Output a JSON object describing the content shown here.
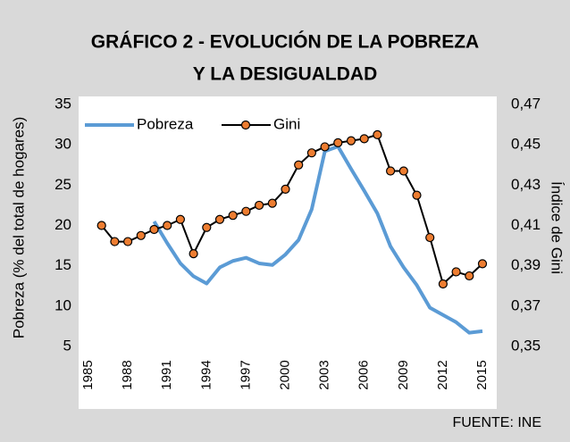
{
  "chart_data": {
    "type": "line",
    "title": "GRÁFICO 2 - EVOLUCIÓN DE LA POBREZA",
    "subtitle": "Y LA DESIGUALDAD",
    "ylabel": "Pobreza (% del total de hogares)",
    "y2label": "Índice de Gini",
    "source": "FUENTE: INE",
    "x": [
      1985,
      1986,
      1987,
      1988,
      1989,
      1990,
      1991,
      1992,
      1993,
      1994,
      1995,
      1996,
      1997,
      1998,
      1999,
      2000,
      2001,
      2002,
      2003,
      2004,
      2005,
      2006,
      2007,
      2008,
      2009,
      2010,
      2011,
      2012,
      2013,
      2014,
      2015
    ],
    "xlim": [
      1985,
      2015
    ],
    "xticks": [
      1985,
      1988,
      1991,
      1994,
      1997,
      2000,
      2003,
      2006,
      2009,
      2012,
      2015
    ],
    "ylim": [
      5,
      35
    ],
    "yticks": [
      5,
      10,
      15,
      20,
      25,
      30,
      35
    ],
    "y2lim": [
      0.35,
      0.47
    ],
    "y2ticks": [
      {
        "value": 0.35,
        "label": "0,35"
      },
      {
        "value": 0.37,
        "label": "0,37"
      },
      {
        "value": 0.39,
        "label": "0,39"
      },
      {
        "value": 0.41,
        "label": "0,41"
      },
      {
        "value": 0.43,
        "label": "0,43"
      },
      {
        "value": 0.45,
        "label": "0,45"
      },
      {
        "value": 0.47,
        "label": "0,47"
      }
    ],
    "legend": "top-left",
    "series": [
      {
        "name": "Pobreza",
        "color": "#5b9bd5",
        "values": [
          null,
          null,
          null,
          null,
          null,
          20.5,
          17.8,
          15.3,
          13.7,
          12.8,
          14.8,
          15.6,
          16.0,
          15.3,
          15.1,
          16.4,
          18.2,
          22.0,
          29.2,
          29.8,
          27.0,
          24.3,
          21.5,
          17.4,
          14.8,
          12.6,
          9.8,
          8.9,
          8.0,
          6.7,
          6.9
        ]
      },
      {
        "name": "Gini",
        "color": "#ed7d31",
        "axis": "y2",
        "values": [
          null,
          0.41,
          0.402,
          0.402,
          0.405,
          0.408,
          0.41,
          0.413,
          0.396,
          0.409,
          0.413,
          0.415,
          0.417,
          0.42,
          0.421,
          0.428,
          0.44,
          0.446,
          0.449,
          0.451,
          0.452,
          0.453,
          0.455,
          0.437,
          0.437,
          0.425,
          0.404,
          0.381,
          0.387,
          0.385,
          0.391
        ]
      }
    ]
  }
}
